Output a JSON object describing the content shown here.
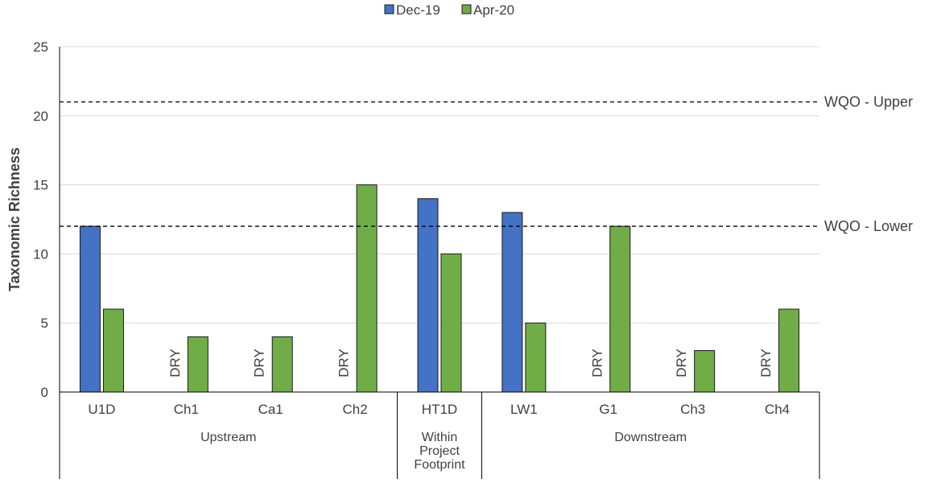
{
  "chart_data": {
    "type": "bar",
    "title": "",
    "ylabel": "Taxonomic Richness",
    "ylim": [
      0,
      25
    ],
    "yticks": [
      0,
      5,
      10,
      15,
      20,
      25
    ],
    "grid": true,
    "legend_position": "top",
    "categories": [
      "U1D",
      "Ch1",
      "Ca1",
      "Ch2",
      "HT1D",
      "LW1",
      "G1",
      "Ch3",
      "Ch4"
    ],
    "groups": [
      {
        "label": "Upstream",
        "categories": [
          "U1D",
          "Ch1",
          "Ca1",
          "Ch2"
        ]
      },
      {
        "label": "Within Project Footprint",
        "categories": [
          "HT1D"
        ]
      },
      {
        "label": "Downstream",
        "categories": [
          "LW1",
          "G1",
          "Ch3",
          "Ch4"
        ]
      }
    ],
    "series": [
      {
        "name": "Dec-19",
        "color": "#4472C4",
        "values": [
          12,
          null,
          null,
          null,
          14,
          13,
          null,
          null,
          null
        ]
      },
      {
        "name": "Apr-20",
        "color": "#70AD47",
        "values": [
          6,
          4,
          4,
          15,
          10,
          5,
          12,
          3,
          6
        ]
      }
    ],
    "missing_label": "DRY",
    "reference_lines": [
      {
        "label": "WQO - Upper",
        "value": 21
      },
      {
        "label": "WQO - Lower",
        "value": 12
      }
    ]
  }
}
